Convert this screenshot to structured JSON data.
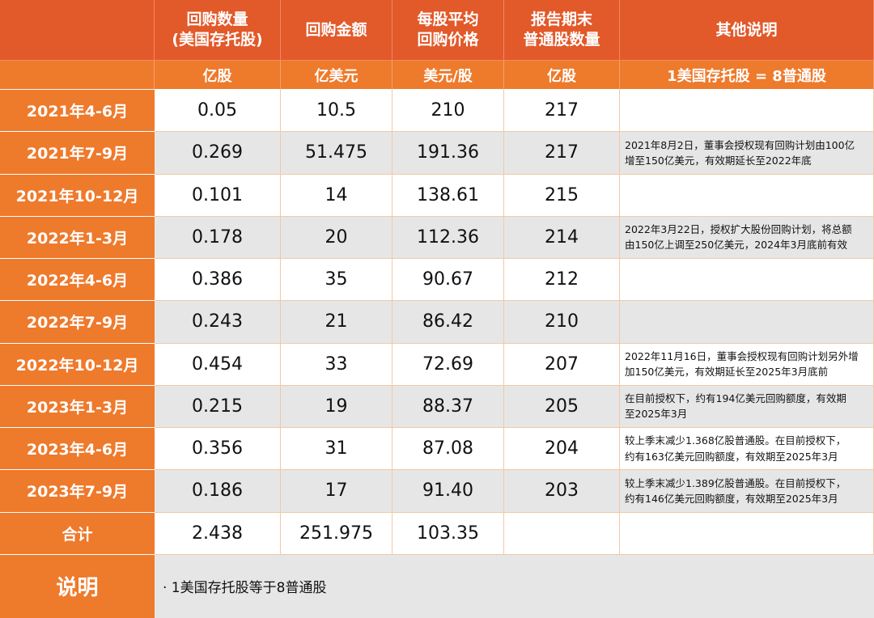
{
  "headers": [
    {
      "line1": "",
      "line2": ""
    },
    {
      "line1": "回购数量",
      "line2": "(美国存托股)"
    },
    {
      "line1": "回购金额",
      "line2": ""
    },
    {
      "line1": "每股平均",
      "line2": "回购价格"
    },
    {
      "line1": "报告期末",
      "line2": "普通股数量"
    },
    {
      "line1": "其他说明",
      "line2": ""
    }
  ],
  "units": [
    "",
    "亿股",
    "亿美元",
    "美元/股",
    "亿股",
    "1美国存托股 = 8普通股"
  ],
  "rows": [
    {
      "period": "2021年4-6月",
      "qty": "0.05",
      "amount": "10.5",
      "price": "210",
      "shares": "217",
      "note1": "",
      "note2": ""
    },
    {
      "period": "2021年7-9月",
      "qty": "0.269",
      "amount": "51.475",
      "price": "191.36",
      "shares": "217",
      "note1": "2021年8月2日，董事会授权现有回购计划由100亿",
      "note2": "增至150亿美元，有效期延长至2022年底"
    },
    {
      "period": "2021年10-12月",
      "qty": "0.101",
      "amount": "14",
      "price": "138.61",
      "shares": "215",
      "note1": "",
      "note2": ""
    },
    {
      "period": "2022年1-3月",
      "qty": "0.178",
      "amount": "20",
      "price": "112.36",
      "shares": "214",
      "note1": "2022年3月22日，授权扩大股份回购计划，将总额",
      "note2": "由150亿上调至250亿美元，2024年3月底前有效"
    },
    {
      "period": "2022年4-6月",
      "qty": "0.386",
      "amount": "35",
      "price": "90.67",
      "shares": "212",
      "note1": "",
      "note2": ""
    },
    {
      "period": "2022年7-9月",
      "qty": "0.243",
      "amount": "21",
      "price": "86.42",
      "shares": "210",
      "note1": "",
      "note2": ""
    },
    {
      "period": "2022年10-12月",
      "qty": "0.454",
      "amount": "33",
      "price": "72.69",
      "shares": "207",
      "note1": "2022年11月16日，董事会授权现有回购计划另外增",
      "note2": "加150亿美元，有效期延长至2025年3月底前"
    },
    {
      "period": "2023年1-3月",
      "qty": "0.215",
      "amount": "19",
      "price": "88.37",
      "shares": "205",
      "note1": "在目前授权下，约有194亿美元回购额度，有效期",
      "note2": "至2025年3月"
    },
    {
      "period": "2023年4-6月",
      "qty": "0.356",
      "amount": "31",
      "price": "87.08",
      "shares": "204",
      "note1": "较上季末减少1.368亿股普通股。在目前授权下，",
      "note2": "约有163亿美元回购额度，有效期至2025年3月"
    },
    {
      "period": "2023年7-9月",
      "qty": "0.186",
      "amount": "17",
      "price": "91.40",
      "shares": "203",
      "note1": "较上季末减少1.389亿股普通股。在目前授权下，",
      "note2": "约有146亿美元回购额度，有效期至2025年3月"
    },
    {
      "period": "合计",
      "qty": "2.438",
      "amount": "251.975",
      "price": "103.35",
      "shares": "",
      "note1": "",
      "note2": ""
    }
  ],
  "footer": {
    "label": "说明",
    "text": "· 1美国存托股等于8普通股"
  },
  "colors": {
    "header": "#e2592a",
    "row_head": "#ee7a2c",
    "stripe": "#e6e6e6"
  }
}
